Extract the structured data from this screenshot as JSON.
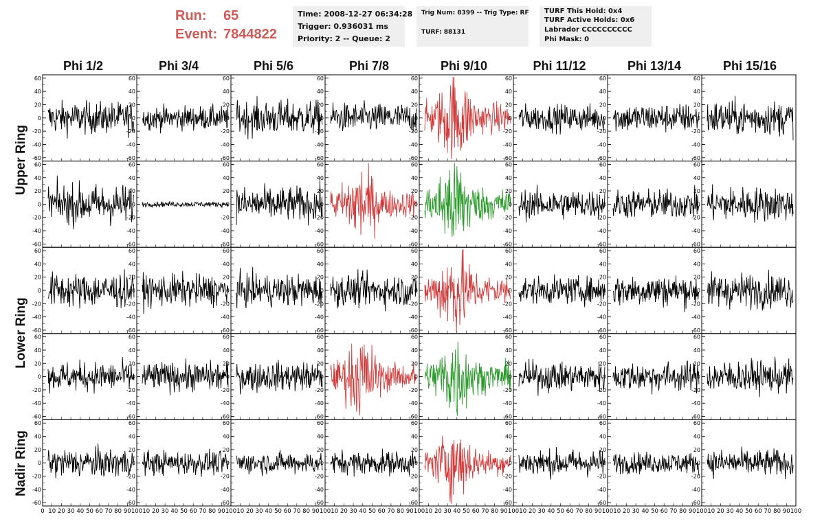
{
  "header": {
    "run_label": "Run:",
    "run_value": "65",
    "event_label": "Event:",
    "event_value": "7844822"
  },
  "info_box_1": {
    "time": "Time: 2008-12-27 06:34:28",
    "trigger": "Trigger: 0.936031 ms",
    "priority": "Priority: 2 -- Queue: 2"
  },
  "info_box_2": {
    "trig": "Trig Num: 8399 -- Trig Type: RF",
    "turf": "TURF: 88131"
  },
  "info_box_3": {
    "this_hold": "TURF This Hold: 0x4",
    "active_holds": "TURF Active Holds: 0x6",
    "labrador": "Labrador CCCCCCCCCC",
    "phi_mask": "Phi Mask: 0"
  },
  "columns": [
    "Phi 1/2",
    "Phi 3/4",
    "Phi 5/6",
    "Phi 7/8",
    "Phi 9/10",
    "Phi 11/12",
    "Phi 13/14",
    "Phi 15/16"
  ],
  "rings": [
    "Upper Ring",
    "Lower Ring",
    "Nadir Ring"
  ],
  "colors": {
    "title_red": "#d05a55",
    "trace_black": "#000000",
    "trace_red": "#d23a3a",
    "trace_green": "#2a9a2a",
    "info_bg": "#efefef"
  },
  "chart_data": {
    "type": "line",
    "panel_rows": 5,
    "panel_cols": 8,
    "y_ticks": [
      60,
      40,
      20,
      0,
      -20,
      -40,
      -60
    ],
    "ylim": [
      -65,
      65
    ],
    "xlim": [
      0,
      100
    ],
    "x_tick_labels": [
      "0",
      "10",
      "20",
      "30",
      "40",
      "50",
      "60",
      "70",
      "80",
      "90",
      "100"
    ],
    "trace_colors": [
      [
        "black",
        "black",
        "black",
        "black",
        "red",
        "black",
        "black",
        "black"
      ],
      [
        "black",
        "black",
        "black",
        "red",
        "green",
        "black",
        "black",
        "black"
      ],
      [
        "black",
        "black",
        "black",
        "black",
        "red",
        "black",
        "black",
        "black"
      ],
      [
        "black",
        "black",
        "black",
        "red",
        "green",
        "black",
        "black",
        "black"
      ],
      [
        "black",
        "black",
        "black",
        "black",
        "red",
        "black",
        "black",
        "black"
      ]
    ]
  }
}
